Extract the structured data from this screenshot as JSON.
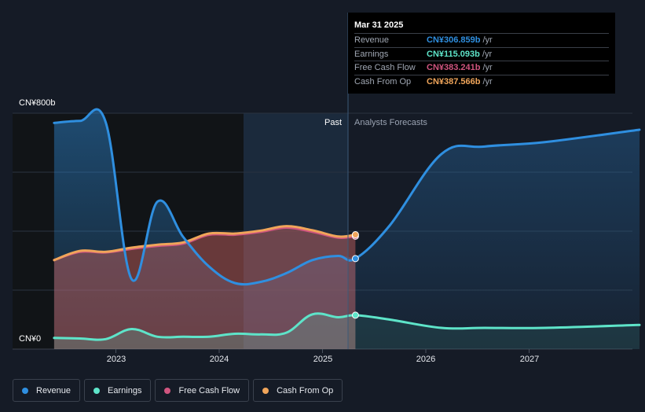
{
  "chart_data": {
    "type": "area",
    "y_axis": {
      "top_label": "CN¥800b",
      "bottom_label": "CN¥0",
      "ylim": [
        0,
        800
      ]
    },
    "x_ticks": [
      "2023",
      "2024",
      "2025",
      "2026",
      "2027"
    ],
    "regions": {
      "past_label": "Past",
      "forecast_label": "Analysts Forecasts"
    },
    "series": [
      {
        "name": "Revenue",
        "color": "#2f8fe0",
        "points": [
          [
            "2022-04",
            767
          ],
          [
            "2022-07",
            774
          ],
          [
            "2022-10",
            769
          ],
          [
            "2023-01",
            237
          ],
          [
            "2023-04",
            500
          ],
          [
            "2023-07",
            380
          ],
          [
            "2023-10",
            280
          ],
          [
            "2024-01",
            224
          ],
          [
            "2024-04",
            228
          ],
          [
            "2024-07",
            258
          ],
          [
            "2024-10",
            302
          ],
          [
            "2025-01",
            316
          ],
          [
            "2025-03",
            307
          ],
          [
            "2025-07",
            420
          ],
          [
            "2026-01",
            662
          ],
          [
            "2026-06",
            687
          ],
          [
            "2027-01",
            702
          ],
          [
            "2027-12",
            744
          ]
        ]
      },
      {
        "name": "Earnings",
        "color": "#5ee4c9",
        "points": [
          [
            "2022-04",
            38
          ],
          [
            "2022-07",
            36
          ],
          [
            "2022-10",
            34
          ],
          [
            "2023-01",
            68
          ],
          [
            "2023-04",
            42
          ],
          [
            "2023-07",
            42
          ],
          [
            "2023-10",
            42
          ],
          [
            "2024-01",
            52
          ],
          [
            "2024-04",
            50
          ],
          [
            "2024-07",
            56
          ],
          [
            "2024-10",
            118
          ],
          [
            "2025-01",
            108
          ],
          [
            "2025-03",
            115
          ],
          [
            "2025-07",
            100
          ],
          [
            "2026-01",
            72
          ],
          [
            "2026-06",
            72
          ],
          [
            "2027-01",
            72
          ],
          [
            "2027-12",
            82
          ]
        ]
      },
      {
        "name": "Free Cash Flow",
        "color": "#d0557f",
        "points": [
          [
            "2022-04",
            302
          ],
          [
            "2022-07",
            330
          ],
          [
            "2022-10",
            328
          ],
          [
            "2023-01",
            340
          ],
          [
            "2023-04",
            350
          ],
          [
            "2023-07",
            358
          ],
          [
            "2023-10",
            388
          ],
          [
            "2024-01",
            388
          ],
          [
            "2024-04",
            398
          ],
          [
            "2024-07",
            412
          ],
          [
            "2024-10",
            398
          ],
          [
            "2025-01",
            378
          ],
          [
            "2025-03",
            383
          ]
        ]
      },
      {
        "name": "Cash From Op",
        "color": "#f0a55a",
        "points": [
          [
            "2022-04",
            302
          ],
          [
            "2022-07",
            333
          ],
          [
            "2022-10",
            330
          ],
          [
            "2023-01",
            344
          ],
          [
            "2023-04",
            354
          ],
          [
            "2023-07",
            362
          ],
          [
            "2023-10",
            392
          ],
          [
            "2024-01",
            392
          ],
          [
            "2024-04",
            402
          ],
          [
            "2024-07",
            417
          ],
          [
            "2024-10",
            403
          ],
          [
            "2025-01",
            382
          ],
          [
            "2025-03",
            388
          ]
        ]
      }
    ]
  },
  "tooltip": {
    "date": "Mar 31 2025",
    "rows": [
      {
        "name": "Revenue",
        "value": "CN¥306.859b",
        "unit": "/yr",
        "color": "#2f8fe0"
      },
      {
        "name": "Earnings",
        "value": "CN¥115.093b",
        "unit": "/yr",
        "color": "#5ee4c9"
      },
      {
        "name": "Free Cash Flow",
        "value": "CN¥383.241b",
        "unit": "/yr",
        "color": "#d0557f"
      },
      {
        "name": "Cash From Op",
        "value": "CN¥387.566b",
        "unit": "/yr",
        "color": "#f0a55a"
      }
    ]
  },
  "legend": [
    {
      "label": "Revenue",
      "color": "#2f8fe0"
    },
    {
      "label": "Earnings",
      "color": "#5ee4c9"
    },
    {
      "label": "Free Cash Flow",
      "color": "#d0557f"
    },
    {
      "label": "Cash From Op",
      "color": "#f0a55a"
    }
  ]
}
